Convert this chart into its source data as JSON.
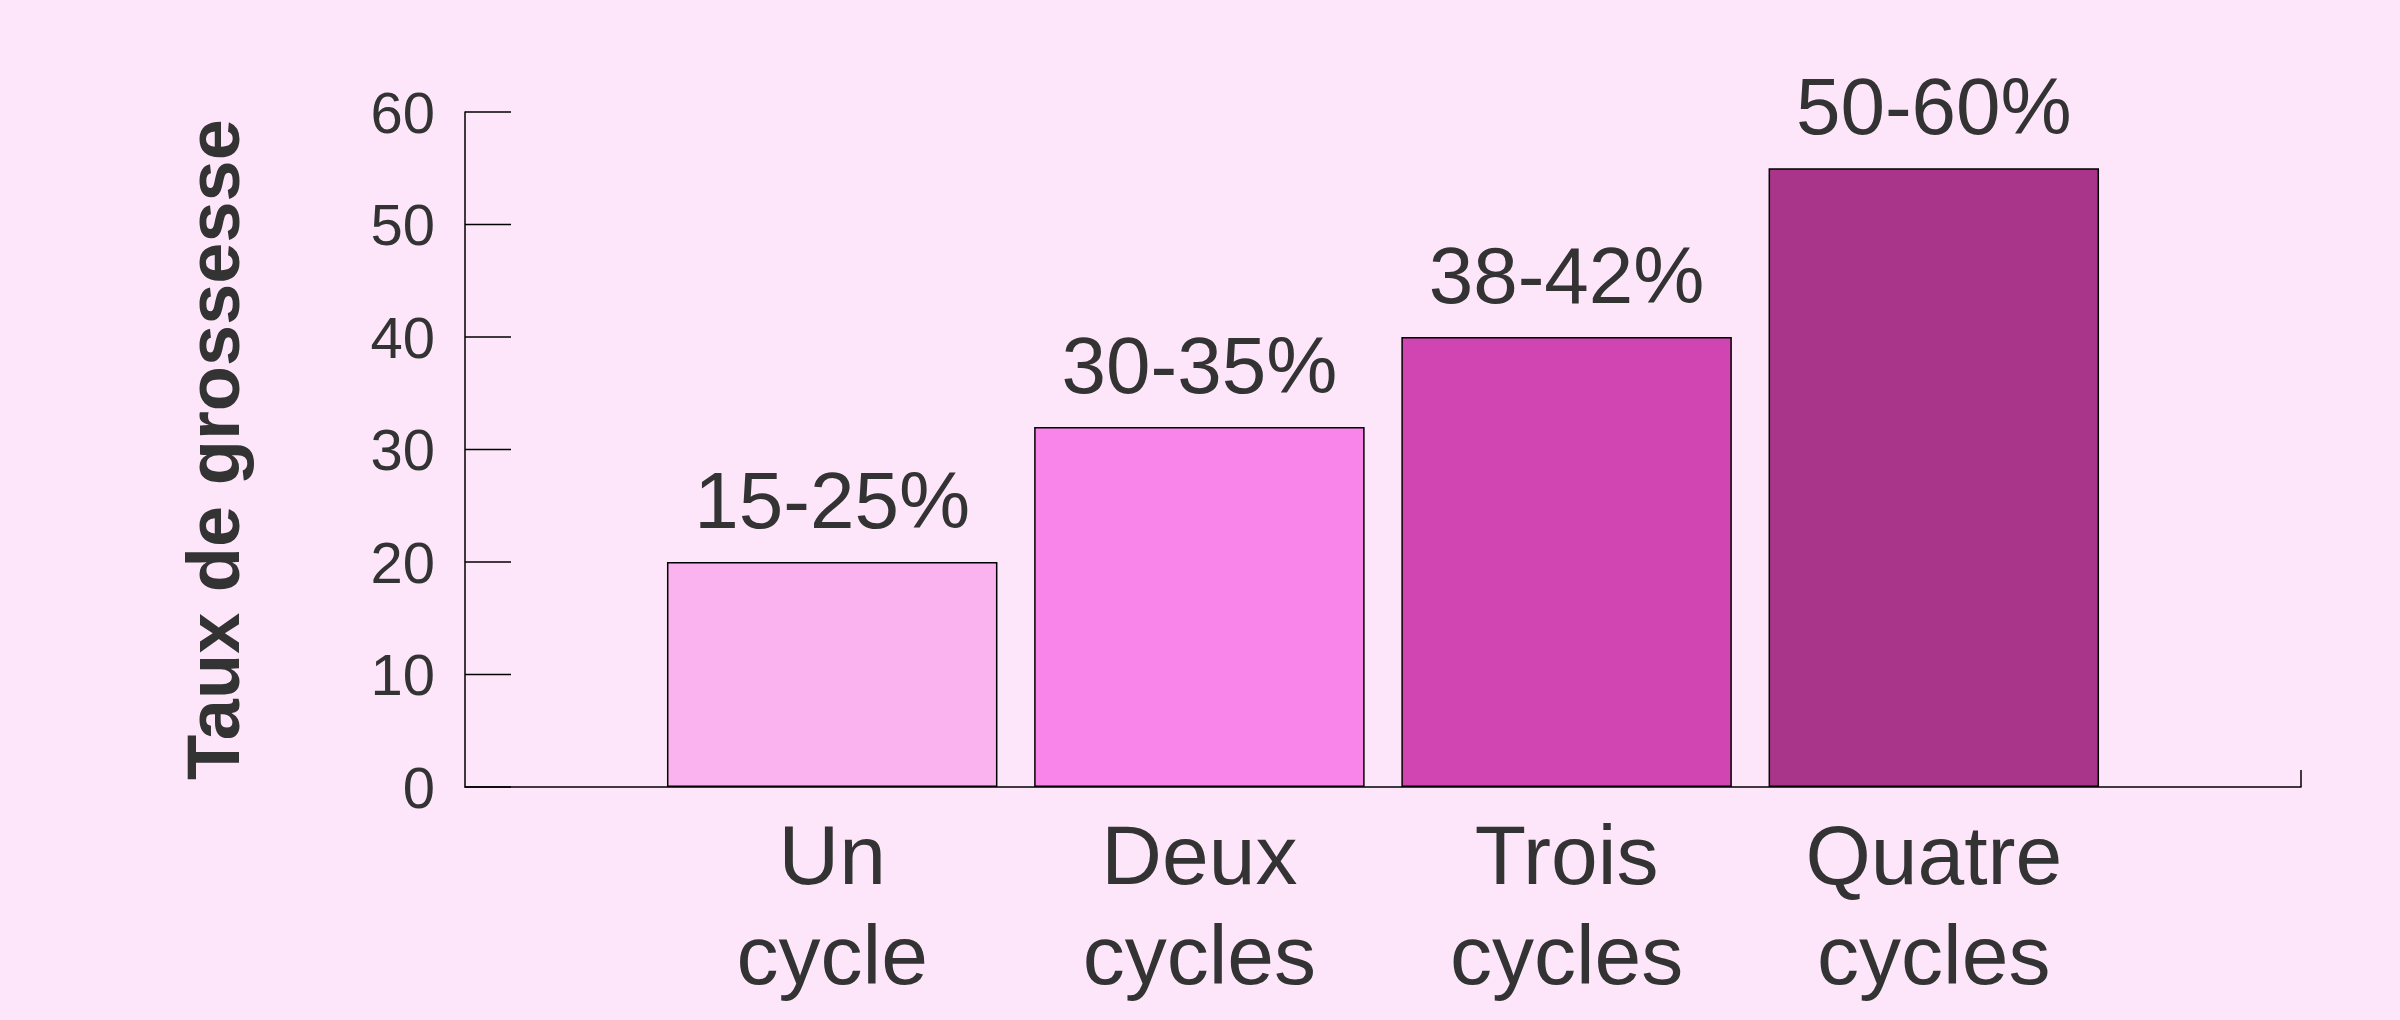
{
  "chart_data": {
    "type": "bar",
    "ylabel": "Taux de grossesse",
    "categories": [
      null,
      "Un cycle",
      "Deux cycles",
      "Trois cycles",
      "Quatre cycles",
      null
    ],
    "values": [
      null,
      20,
      32,
      40,
      55,
      null
    ],
    "colors": [
      null,
      "#fbb3f0",
      "#f984ea",
      "#d145b2",
      "#a83589",
      null
    ],
    "annotations": [
      {
        "text": "15-25%",
        "x": "Un cycle",
        "y": 20
      },
      {
        "text": "30-35%",
        "x": "Deux cycles",
        "y": 32
      },
      {
        "text": "38-42%",
        "x": "Trois cycles",
        "y": 40
      },
      {
        "text": "50-60%",
        "x": "Quatre cycles",
        "y": 55
      }
    ],
    "ylim": [
      0,
      60
    ],
    "yticks": [
      0,
      10,
      20,
      30,
      40,
      50,
      60
    ]
  }
}
